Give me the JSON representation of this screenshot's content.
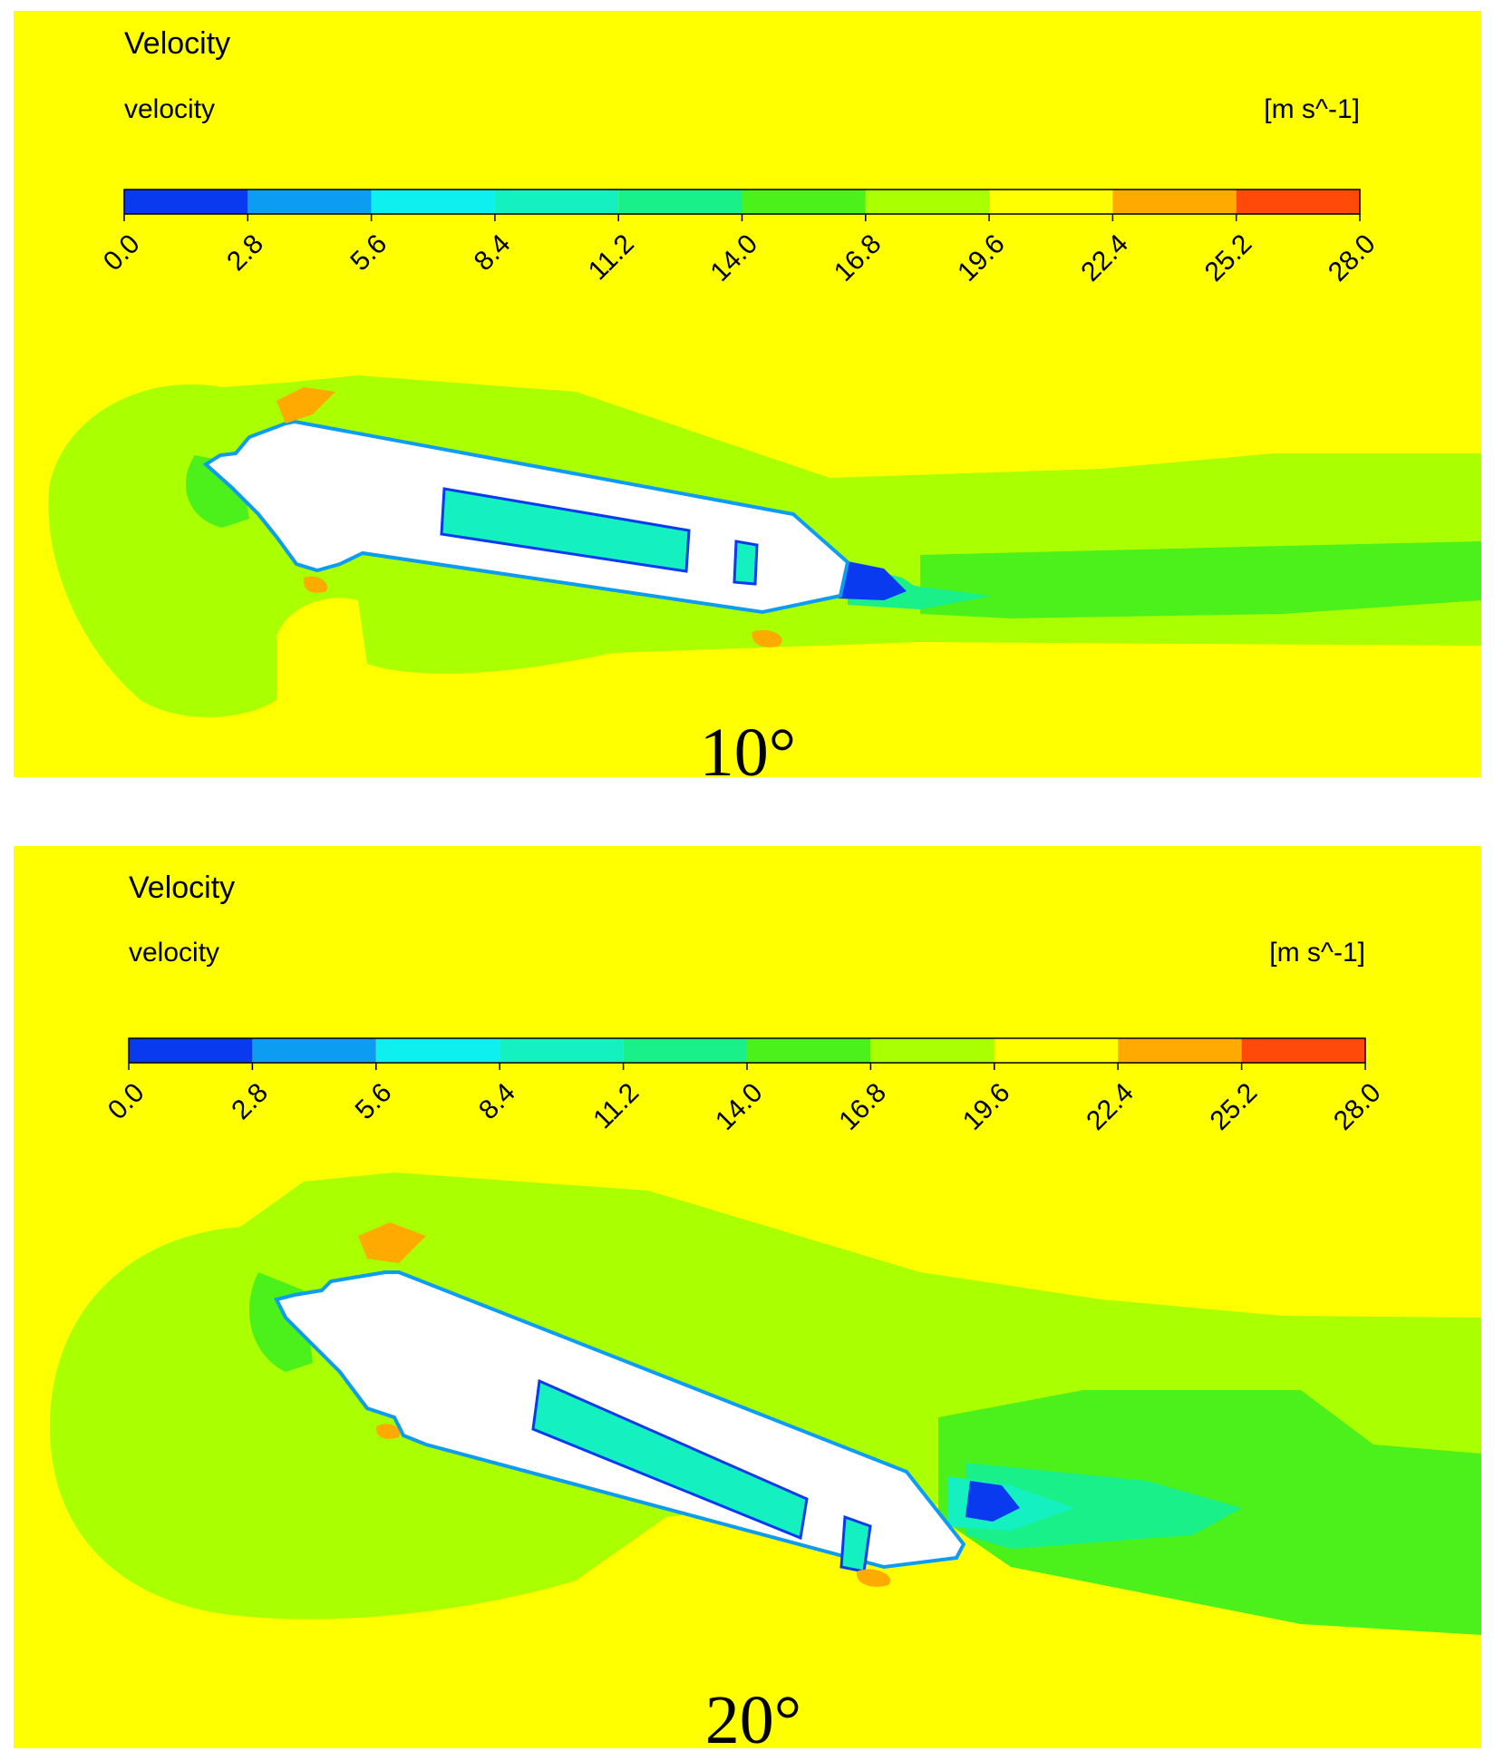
{
  "chart_data": [
    {
      "type": "heatmap",
      "title": "Velocity",
      "variable": "velocity",
      "unit": "[m s^-1]",
      "colorbar": {
        "ticks": [
          "0.0",
          "2.8",
          "5.6",
          "8.4",
          "11.2",
          "14.0",
          "16.8",
          "19.6",
          "22.4",
          "25.2",
          "28.0"
        ],
        "colors": [
          "#0a3af0",
          "#0c9cf2",
          "#0ef0f0",
          "#14f0c0",
          "#1af08a",
          "#4cf01a",
          "#aaff00",
          "#ffff00",
          "#ffaa00",
          "#ff4a0a"
        ]
      },
      "background_color": "#ffff00",
      "caption": "10°"
    },
    {
      "type": "heatmap",
      "title": "Velocity",
      "variable": "velocity",
      "unit": "[m s^-1]",
      "colorbar": {
        "ticks": [
          "0.0",
          "2.8",
          "5.6",
          "8.4",
          "11.2",
          "14.0",
          "16.8",
          "19.6",
          "22.4",
          "25.2",
          "28.0"
        ],
        "colors": [
          "#0a3af0",
          "#0c9cf2",
          "#0ef0f0",
          "#14f0c0",
          "#1af08a",
          "#4cf01a",
          "#aaff00",
          "#ffff00",
          "#ffaa00",
          "#ff4a0a"
        ]
      },
      "background_color": "#ffff00",
      "caption": "20°"
    }
  ]
}
